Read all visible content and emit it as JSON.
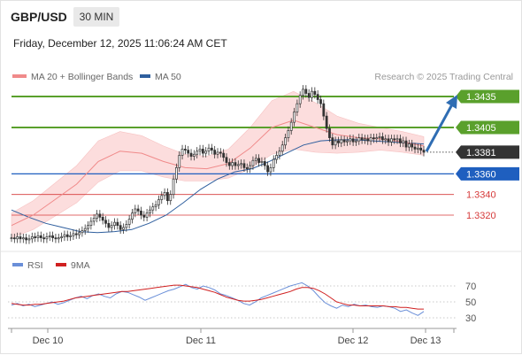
{
  "header": {
    "pair": "GBP/USD",
    "timeframe": "30 MIN",
    "timestamp": "Friday, December 12, 2025 11:06:24 AM CET"
  },
  "legend": {
    "ma20_label": "MA 20 + Bollinger Bands",
    "ma50_label": "MA 50",
    "rsi_label": "RSI",
    "rsi_ma_label": "9MA"
  },
  "credit": "Research © 2025 Trading Central",
  "colors": {
    "ma20": "#f08a8a",
    "ma50": "#2f5f9e",
    "band_fill": "#fcdada",
    "resistance": "#5aa02c",
    "current": "#333333",
    "pivot": "#1f5fbf",
    "support": "#d63a3a",
    "arrow": "#2f6db3",
    "candle": "#333333",
    "rsi": "#6a8fd8",
    "rsi_ma": "#d02020"
  },
  "chart_data": [
    {
      "type": "line",
      "title": "GBP/USD",
      "x_ticks": [
        "Dec 10",
        "Dec 11",
        "Dec 12",
        "Dec 13"
      ],
      "ylim": [
        1.3292,
        1.3461
      ],
      "levels": [
        {
          "value": 1.3435,
          "label": "1.3435",
          "kind": "resistance"
        },
        {
          "value": 1.3405,
          "label": "1.3405",
          "kind": "resistance"
        },
        {
          "value": 1.3381,
          "label": "1.3381",
          "kind": "current"
        },
        {
          "value": 1.336,
          "label": "1.3360",
          "kind": "pivot"
        },
        {
          "value": 1.334,
          "label": "1.3340",
          "kind": "support"
        },
        {
          "value": 1.332,
          "label": "1.3320",
          "kind": "support"
        }
      ],
      "close": [
        1.3298,
        1.3297,
        1.3299,
        1.3297,
        1.3298,
        1.3296,
        1.3297,
        1.3299,
        1.3298,
        1.33,
        1.3298,
        1.3297,
        1.3299,
        1.33,
        1.3298,
        1.3297,
        1.3298,
        1.3299,
        1.3301,
        1.3299,
        1.33,
        1.3302,
        1.3301,
        1.3303,
        1.3305,
        1.3307,
        1.331,
        1.3314,
        1.3317,
        1.3321,
        1.3318,
        1.3315,
        1.3312,
        1.3308,
        1.331,
        1.3313,
        1.331,
        1.3306,
        1.3308,
        1.3311,
        1.3316,
        1.3322,
        1.3326,
        1.3324,
        1.332,
        1.3318,
        1.3322,
        1.3325,
        1.3328,
        1.333,
        1.3335,
        1.3339,
        1.3342,
        1.3334,
        1.334,
        1.3355,
        1.3366,
        1.3378,
        1.3384,
        1.3383,
        1.338,
        1.3377,
        1.3379,
        1.3382,
        1.3384,
        1.338,
        1.3382,
        1.3385,
        1.3383,
        1.3379,
        1.3381,
        1.338,
        1.3376,
        1.3371,
        1.3368,
        1.3371,
        1.3368,
        1.3369,
        1.337,
        1.3366,
        1.3365,
        1.3368,
        1.3373,
        1.3375,
        1.3371,
        1.3372,
        1.3368,
        1.3362,
        1.3366,
        1.3374,
        1.3378,
        1.3382,
        1.3388,
        1.3395,
        1.3402,
        1.341,
        1.342,
        1.3428,
        1.3436,
        1.3442,
        1.3438,
        1.3434,
        1.344,
        1.3437,
        1.3432,
        1.3428,
        1.3416,
        1.3404,
        1.3395,
        1.3388,
        1.3392,
        1.339,
        1.3393,
        1.3391,
        1.3392,
        1.3394,
        1.3391,
        1.3392,
        1.3395,
        1.3393,
        1.3394,
        1.3392,
        1.3395,
        1.3394,
        1.3395,
        1.3396,
        1.3393,
        1.3394,
        1.3391,
        1.3394,
        1.3393,
        1.3394,
        1.339,
        1.3392,
        1.3386,
        1.3389,
        1.3386,
        1.3384,
        1.3385,
        1.3383,
        1.3381
      ],
      "series": [
        {
          "name": "MA 20",
          "values": [
            1.331,
            1.332,
            1.3335,
            1.335,
            1.3372,
            1.3382,
            1.338,
            1.3372,
            1.3366,
            1.3365,
            1.337,
            1.3385,
            1.3405,
            1.3412,
            1.3405,
            1.3398,
            1.3395,
            1.3394,
            1.3391,
            1.3387
          ]
        },
        {
          "name": "MA 50",
          "values": [
            1.3325,
            1.3318,
            1.3312,
            1.3308,
            1.3304,
            1.3303,
            1.3304,
            1.3306,
            1.3312,
            1.332,
            1.3332,
            1.3345,
            1.3355,
            1.3362,
            1.3365,
            1.3372,
            1.338,
            1.3388,
            1.3392,
            1.3393,
            1.3393,
            1.3392,
            1.3391,
            1.339,
            1.3389
          ]
        }
      ]
    },
    {
      "type": "line",
      "x_ticks": [
        "Dec 10",
        "Dec 11",
        "Dec 12",
        "Dec 13"
      ],
      "y_ticks": [
        70,
        50,
        30
      ],
      "ylim": [
        20,
        80
      ],
      "series": [
        {
          "name": "RSI",
          "values": [
            46,
            48,
            45,
            47,
            44,
            46,
            48,
            50,
            47,
            49,
            52,
            55,
            57,
            54,
            58,
            60,
            57,
            55,
            60,
            63,
            62,
            59,
            56,
            52,
            55,
            58,
            61,
            64,
            66,
            69,
            72,
            68,
            66,
            70,
            68,
            65,
            60,
            58,
            55,
            52,
            48,
            46,
            50,
            55,
            58,
            61,
            64,
            67,
            70,
            72,
            74,
            70,
            64,
            56,
            49,
            45,
            42,
            46,
            44,
            47,
            45,
            46,
            44,
            43,
            45,
            44,
            42,
            38,
            40,
            36,
            33,
            38
          ]
        },
        {
          "name": "9MA",
          "values": [
            48,
            47,
            46,
            46,
            47,
            47,
            48,
            49,
            50,
            51,
            53,
            55,
            56,
            57,
            58,
            59,
            60,
            61,
            62,
            63,
            63,
            64,
            65,
            66,
            67,
            68,
            69,
            70,
            71,
            71,
            70,
            69,
            68,
            66,
            64,
            62,
            59,
            56,
            54,
            52,
            51,
            51,
            52,
            53,
            55,
            57,
            59,
            61,
            63,
            66,
            68,
            68,
            67,
            64,
            60,
            55,
            50,
            48,
            46,
            46,
            45,
            45,
            45,
            45,
            45,
            44,
            44,
            43,
            43,
            42,
            41,
            41
          ]
        }
      ]
    }
  ]
}
